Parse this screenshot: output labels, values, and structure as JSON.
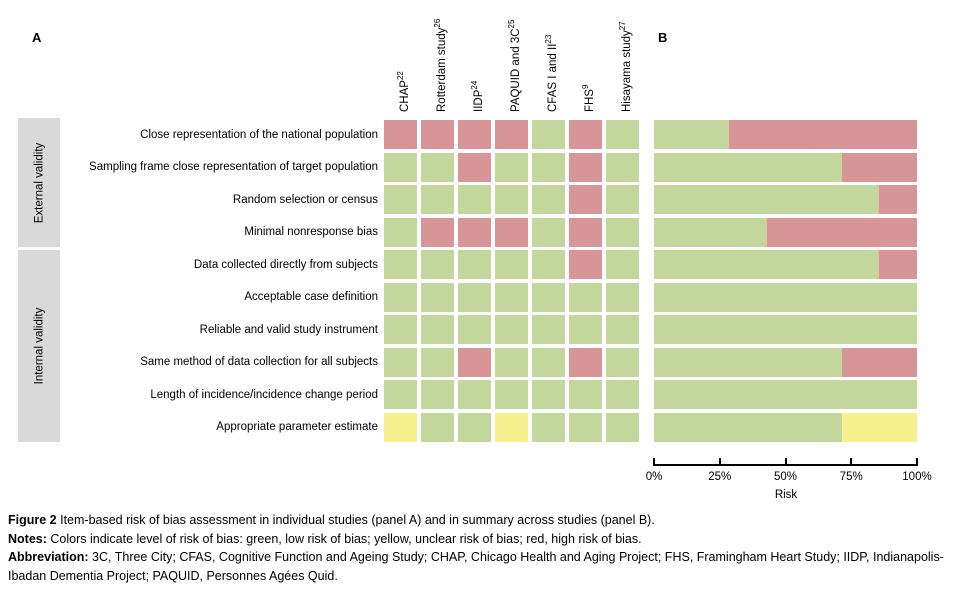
{
  "figure": {
    "panel_a_label": "A",
    "panel_b_label": "B"
  },
  "colors": {
    "low": "#c3d69b",
    "unclear": "#f6f08e",
    "high": "#d89597",
    "group_box": "#d9d9d9"
  },
  "studies": [
    {
      "name": "CHAP",
      "ref": "22"
    },
    {
      "name": "Rotterdam study",
      "ref": "26"
    },
    {
      "name": "IIDP",
      "ref": "24"
    },
    {
      "name": "PAQUID and 3C",
      "ref": "25"
    },
    {
      "name": "CFAS I and II",
      "ref": "23"
    },
    {
      "name": "FHS",
      "ref": "9"
    },
    {
      "name": "Hisayama study",
      "ref": "27"
    }
  ],
  "groups": [
    {
      "label": "External validity",
      "start_row": 0,
      "end_row": 3
    },
    {
      "label": "Internal validity",
      "start_row": 4,
      "end_row": 9
    }
  ],
  "items": [
    {
      "label": "Close representation of the national population",
      "ratings": [
        "high",
        "high",
        "high",
        "high",
        "low",
        "high",
        "low"
      ]
    },
    {
      "label": "Sampling frame close representation of target population",
      "ratings": [
        "low",
        "low",
        "high",
        "low",
        "low",
        "high",
        "low"
      ]
    },
    {
      "label": "Random selection or census",
      "ratings": [
        "low",
        "low",
        "low",
        "low",
        "low",
        "high",
        "low"
      ]
    },
    {
      "label": "Minimal nonresponse bias",
      "ratings": [
        "low",
        "high",
        "high",
        "high",
        "low",
        "high",
        "low"
      ]
    },
    {
      "label": "Data collected directly from subjects",
      "ratings": [
        "low",
        "low",
        "low",
        "low",
        "low",
        "high",
        "low"
      ]
    },
    {
      "label": "Acceptable case definition",
      "ratings": [
        "low",
        "low",
        "low",
        "low",
        "low",
        "low",
        "low"
      ]
    },
    {
      "label": "Reliable and valid study instrument",
      "ratings": [
        "low",
        "low",
        "low",
        "low",
        "low",
        "low",
        "low"
      ]
    },
    {
      "label": "Same method of data collection for all subjects",
      "ratings": [
        "low",
        "low",
        "high",
        "low",
        "low",
        "high",
        "low"
      ]
    },
    {
      "label": "Length of incidence/incidence change period",
      "ratings": [
        "low",
        "low",
        "low",
        "low",
        "low",
        "low",
        "low"
      ]
    },
    {
      "label": "Appropriate parameter estimate",
      "ratings": [
        "unclear",
        "low",
        "low",
        "unclear",
        "low",
        "low",
        "low"
      ]
    }
  ],
  "chart_data": {
    "type": "bar",
    "stacked": true,
    "orientation": "horizontal",
    "title": "Summary risk of bias across studies (panel B)",
    "categories": [
      "Close representation of the national population",
      "Sampling frame close representation of target population",
      "Random selection or census",
      "Minimal nonresponse bias",
      "Data collected directly from subjects",
      "Acceptable case definition",
      "Reliable and valid study instrument",
      "Same method of data collection for all subjects",
      "Length of incidence/incidence change period",
      "Appropriate parameter estimate"
    ],
    "series": [
      {
        "name": "Low risk of bias (green)",
        "values": [
          28.6,
          71.4,
          85.7,
          42.9,
          85.7,
          100,
          100,
          71.4,
          100,
          71.4
        ]
      },
      {
        "name": "Unclear risk of bias (yellow)",
        "values": [
          0,
          0,
          0,
          0,
          0,
          0,
          0,
          0,
          0,
          28.6
        ]
      },
      {
        "name": "High risk of bias (red)",
        "values": [
          71.4,
          28.6,
          14.3,
          57.1,
          14.3,
          0,
          0,
          28.6,
          0,
          0
        ]
      }
    ],
    "xlabel": "Risk",
    "x_ticks": [
      "0%",
      "25%",
      "50%",
      "75%",
      "100%"
    ],
    "xlim": [
      0,
      100
    ],
    "grid": false,
    "legend_position": "none"
  },
  "caption": {
    "figure_label": "Figure 2",
    "figure_text": " Item-based risk of bias assessment in individual studies (panel A) and in summary across studies (panel B).",
    "notes_label": "Notes:",
    "notes_text": " Colors indicate level of risk of bias: green, low risk of bias; yellow, unclear risk of bias; red, high risk of bias.",
    "abbreviation_label": "Abbreviation:",
    "abbreviation_text": " 3C, Three City; CFAS, Cognitive Function and Ageing Study; CHAP, Chicago Health and Aging Project;  FHS, Framingham Heart Study; IIDP, Indianapolis-Ibadan Dementia Project; PAQUID, Personnes Agées Quid."
  }
}
